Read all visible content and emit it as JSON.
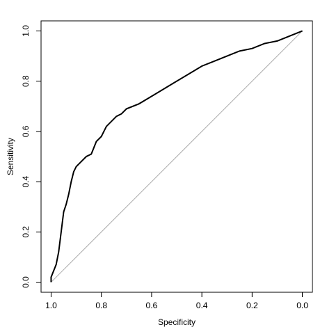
{
  "chart_data": {
    "type": "line",
    "x_label": "Specificity",
    "y_label": "Sensitivity",
    "series": [
      {
        "color": "#000000",
        "x": [
          1.0,
          1.0,
          0.98,
          0.97,
          0.96,
          0.95,
          0.94,
          0.93,
          0.92,
          0.91,
          0.9,
          0.88,
          0.86,
          0.84,
          0.82,
          0.8,
          0.78,
          0.76,
          0.74,
          0.72,
          0.7,
          0.65,
          0.6,
          0.55,
          0.5,
          0.45,
          0.4,
          0.35,
          0.3,
          0.25,
          0.2,
          0.15,
          0.1,
          0.05,
          0.0
        ],
        "values": [
          0.0,
          0.02,
          0.07,
          0.12,
          0.2,
          0.28,
          0.31,
          0.35,
          0.4,
          0.44,
          0.46,
          0.48,
          0.5,
          0.51,
          0.56,
          0.58,
          0.62,
          0.64,
          0.66,
          0.67,
          0.69,
          0.71,
          0.74,
          0.77,
          0.8,
          0.83,
          0.86,
          0.88,
          0.9,
          0.92,
          0.93,
          0.95,
          0.96,
          0.98,
          1.0
        ]
      }
    ],
    "reference_color": "#aaaaaa",
    "xlim": [
      1.04,
      -0.04
    ],
    "xticks": [
      {
        "value": 1.0,
        "label": "1.0"
      },
      0.8,
      0.6,
      0.4,
      0.2,
      {
        "value": 0.0,
        "label": "0.0"
      }
    ],
    "ylim": [
      -0.04,
      1.04
    ],
    "yticks": [
      {
        "value": 0.0,
        "label": "0.0"
      },
      0.2,
      0.4,
      0.6,
      0.8,
      {
        "value": 1.0,
        "label": "1.0"
      }
    ]
  }
}
